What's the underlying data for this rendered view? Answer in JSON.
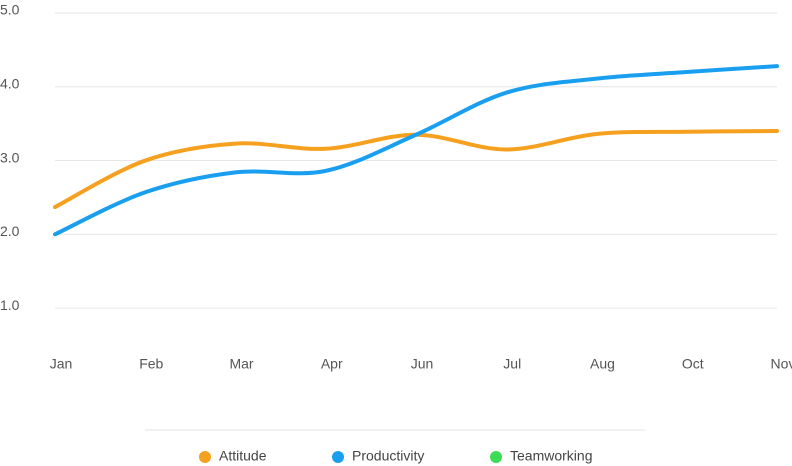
{
  "chart_data": {
    "type": "line",
    "categories": [
      "Jan",
      "Feb",
      "Mar",
      "Apr",
      "Jun",
      "Jul",
      "Aug",
      "Oct",
      "Nov"
    ],
    "series": [
      {
        "name": "Attitude",
        "color": "#f5a01e",
        "values": [
          2.37,
          3.0,
          3.23,
          3.16,
          3.35,
          3.15,
          3.36,
          3.39,
          3.4
        ]
      },
      {
        "name": "Productivity",
        "color": "#1a9ff0",
        "values": [
          2.0,
          2.57,
          2.84,
          2.86,
          3.35,
          3.92,
          4.11,
          4.2,
          4.28
        ]
      },
      {
        "name": "Teamworking",
        "color": "#3ddc55",
        "values": [
          null,
          null,
          null,
          null,
          null,
          null,
          null,
          null,
          null
        ]
      }
    ],
    "ylim": [
      0.5,
      5.0
    ],
    "yticks": [
      {
        "value": 1,
        "label": "1.0"
      },
      {
        "value": 2,
        "label": "2.0"
      },
      {
        "value": 3,
        "label": "3.0"
      },
      {
        "value": 4,
        "label": "4.0"
      },
      {
        "value": 5,
        "label": "5.0"
      }
    ],
    "grid": true,
    "legend": "bottom"
  }
}
